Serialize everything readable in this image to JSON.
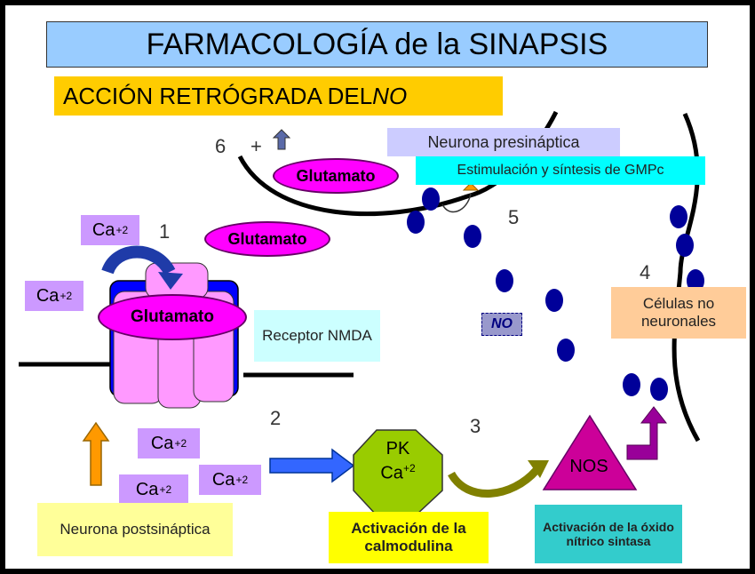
{
  "title": "FARMACOLOGÍA de la SINAPSIS",
  "subtitle": {
    "main": "ACCIÓN RETRÓGRADA DEL ",
    "italic": "NO"
  },
  "labels": {
    "presynaptic": "Neurona presináptica",
    "gmpc": "Estimulación y síntesis de GMPc",
    "nmda": "Receptor NMDA",
    "non_neuronal": "Células no neuronales",
    "no": "NO",
    "postsynaptic": "Neurona postsináptica",
    "calmodulin": "Activación de la calmodulina",
    "nos_activation": "Activación de la óxido nítrico sintasa",
    "pk_line1": "PK",
    "pk_line2": "Ca",
    "pk_sup": "+2",
    "nos": "NOS",
    "glutamato": "Glutamato",
    "ca": "Ca",
    "ca_sup": "+2",
    "plus": "+"
  },
  "numbers": {
    "n1": "1",
    "n2": "2",
    "n3": "3",
    "n4": "4",
    "n5": "5",
    "n6": "6"
  },
  "colors": {
    "title_bg": "#99ccff",
    "subtitle_bg": "#ffcc00",
    "ca_bg": "#cc99ff",
    "glutamato": "#ff00ff",
    "presynaptic_bg": "#ccccff",
    "gmpc_bg": "#00ffff",
    "nmda_bg": "#ccffff",
    "non_neuronal_bg": "#ffcc99",
    "postsynaptic_bg": "#ffff99",
    "calmodulin_bg": "#ffff00",
    "nos_activation_bg": "#33cccc",
    "pk_octagon": "#99cc00",
    "nos_triangle": "#cc0099",
    "no_dots": "#000099"
  }
}
